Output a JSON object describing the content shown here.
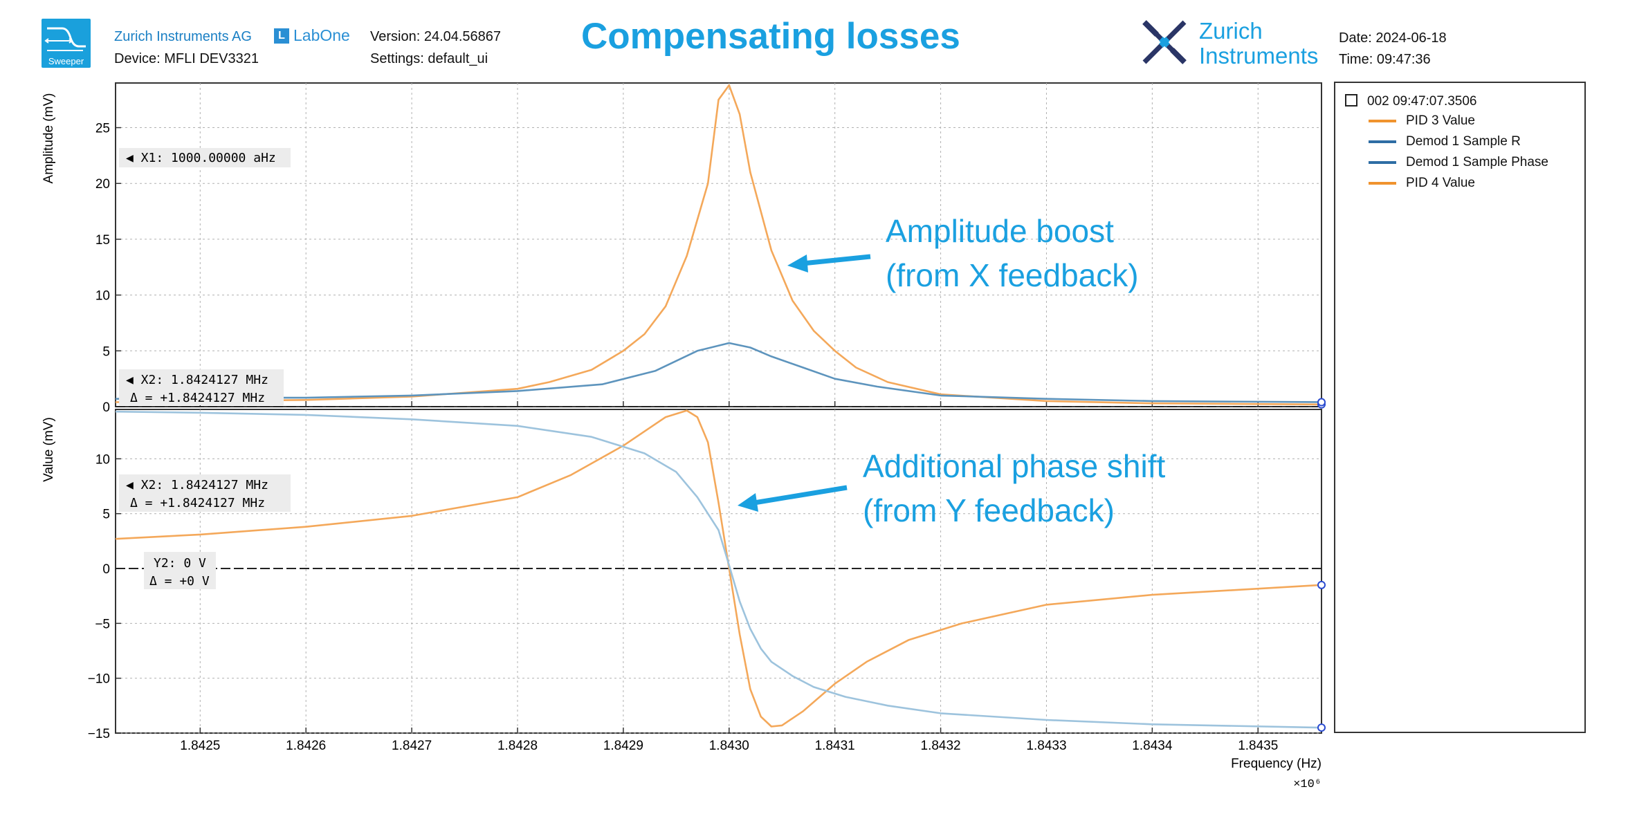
{
  "header": {
    "logo_label": "Sweeper",
    "company": "Zurich Instruments AG",
    "device": "Device: MFLI DEV3321",
    "labone": "LabOne",
    "labone_glyph": "L",
    "version": "Version: 24.04.56867",
    "settings": "Settings: default_ui",
    "title": "Compensating losses",
    "brand_line1": "Zurich",
    "brand_line2": "Instruments",
    "date": "Date: 2024-06-18",
    "time": "Time: 09:47:36"
  },
  "legend": {
    "timestamp": "002 09:47:07.3506",
    "items": [
      {
        "label": "PID 3 Value",
        "color": "#f0932e"
      },
      {
        "label": "Demod 1 Sample R",
        "color": "#2e6da4"
      },
      {
        "label": "Demod 1 Sample Phase",
        "color": "#2e6da4"
      },
      {
        "label": "PID 4 Value",
        "color": "#f0932e"
      }
    ]
  },
  "annotations": {
    "top_line1": "Amplitude boost",
    "top_line2": "(from X feedback)",
    "bottom_line1": "Additional phase shift",
    "bottom_line2": "(from Y feedback)"
  },
  "cursors": {
    "top_x1": "◀ X1: 1000.00000 aHz",
    "top_x2": "◀ X2: 1.8424127 MHz",
    "top_delta": "Δ = +1.8424127 MHz",
    "bottom_x2": "◀ X2: 1.8424127 MHz",
    "bottom_delta": "Δ = +1.8424127 MHz",
    "bottom_y2": "Y2: 0 V",
    "bottom_y2_delta": "Δ = +0 V"
  },
  "colors": {
    "orange": "#f4a85a",
    "blue": "#5d94bd",
    "light_blue": "#9dc3dd",
    "accent": "#1aa0e0"
  },
  "chart_data": [
    {
      "type": "line",
      "ylabel": "Amplitude (mV)",
      "xlim": [
        1.84242,
        1.84356
      ],
      "ylim": [
        0,
        29
      ],
      "yticks": [
        0,
        5,
        10,
        15,
        20,
        25
      ],
      "grid": true,
      "series": [
        {
          "color": "orange",
          "x": [
            1.84242,
            1.8425,
            1.8426,
            1.8427,
            1.8428,
            1.84283,
            1.84287,
            1.8429,
            1.84292,
            1.84294,
            1.84296,
            1.84298,
            1.84299,
            1.843,
            1.84301,
            1.84302,
            1.84304,
            1.84306,
            1.84308,
            1.8431,
            1.84312,
            1.84315,
            1.8432,
            1.8433,
            1.8434,
            1.84356
          ],
          "y": [
            0.4,
            0.5,
            0.6,
            0.9,
            1.6,
            2.2,
            3.3,
            5.0,
            6.5,
            9.0,
            13.5,
            20.0,
            27.5,
            28.8,
            26.2,
            21.0,
            14.0,
            9.5,
            6.8,
            5.0,
            3.5,
            2.2,
            1.1,
            0.5,
            0.3,
            0.2
          ]
        },
        {
          "color": "blue",
          "x": [
            1.84242,
            1.8425,
            1.8426,
            1.8427,
            1.8428,
            1.84288,
            1.84293,
            1.84297,
            1.843,
            1.84302,
            1.84304,
            1.84307,
            1.8431,
            1.84314,
            1.8432,
            1.8433,
            1.8434,
            1.84356
          ],
          "y": [
            0.7,
            0.8,
            0.8,
            1.0,
            1.4,
            2.0,
            3.2,
            5.0,
            5.7,
            5.3,
            4.5,
            3.5,
            2.5,
            1.8,
            1.0,
            0.7,
            0.5,
            0.4
          ]
        }
      ]
    },
    {
      "type": "line",
      "ylabel": "Value (mV)",
      "xlabel": "Frequency (Hz)",
      "x_multiplier": "×10⁶",
      "xlim": [
        1.84242,
        1.84356
      ],
      "ylim": [
        -15,
        14.5
      ],
      "yticks": [
        -15,
        -10,
        -5,
        0,
        5,
        10
      ],
      "xticks": [
        "1.8425",
        "1.8426",
        "1.8427",
        "1.8428",
        "1.8429",
        "1.8430",
        "1.8431",
        "1.8432",
        "1.8433",
        "1.8434",
        "1.8435"
      ],
      "grid": true,
      "series": [
        {
          "color": "orange",
          "x": [
            1.84242,
            1.8425,
            1.8426,
            1.8427,
            1.8428,
            1.84285,
            1.8429,
            1.84294,
            1.84296,
            1.84297,
            1.84298,
            1.84299,
            1.843,
            1.84301,
            1.84302,
            1.84303,
            1.84304,
            1.84305,
            1.84307,
            1.8431,
            1.84313,
            1.84317,
            1.84322,
            1.8433,
            1.8434,
            1.84356
          ],
          "y": [
            2.7,
            3.1,
            3.8,
            4.8,
            6.5,
            8.5,
            11.2,
            13.8,
            14.4,
            13.8,
            11.5,
            6.0,
            0.0,
            -6.0,
            -11.0,
            -13.5,
            -14.4,
            -14.3,
            -13.0,
            -10.5,
            -8.5,
            -6.5,
            -5.0,
            -3.3,
            -2.4,
            -1.5
          ]
        },
        {
          "color": "light_blue",
          "x": [
            1.84242,
            1.8425,
            1.8426,
            1.8427,
            1.8428,
            1.84287,
            1.84292,
            1.84295,
            1.84297,
            1.84299,
            1.843,
            1.84301,
            1.84302,
            1.84303,
            1.84304,
            1.84306,
            1.84308,
            1.84311,
            1.84315,
            1.8432,
            1.8433,
            1.8434,
            1.84356
          ],
          "y": [
            14.3,
            14.2,
            14.0,
            13.6,
            13.0,
            12.0,
            10.5,
            8.8,
            6.5,
            3.5,
            0.3,
            -3.0,
            -5.5,
            -7.3,
            -8.5,
            -9.8,
            -10.8,
            -11.7,
            -12.5,
            -13.2,
            -13.8,
            -14.2,
            -14.5
          ]
        }
      ]
    }
  ]
}
